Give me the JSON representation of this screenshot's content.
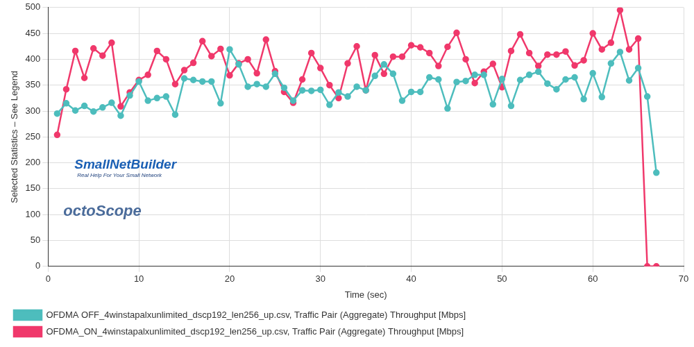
{
  "chart_data": {
    "type": "line",
    "x_label": "Time (sec)",
    "y_label": "Selected Statistics – See Legend",
    "annotations": [
      "SmallNetBuilder",
      "Real Help For Your Small Network",
      "octoScope"
    ],
    "x": [
      1,
      2,
      3,
      4,
      5,
      6,
      7,
      8,
      9,
      10,
      11,
      12,
      13,
      14,
      15,
      16,
      17,
      18,
      19,
      20,
      21,
      22,
      23,
      24,
      25,
      26,
      27,
      28,
      29,
      30,
      31,
      32,
      33,
      34,
      35,
      36,
      37,
      38,
      39,
      40,
      41,
      42,
      43,
      44,
      45,
      46,
      47,
      48,
      49,
      50,
      51,
      52,
      53,
      54,
      55,
      56,
      57,
      58,
      59,
      60,
      61,
      62,
      63,
      64,
      65,
      66,
      67
    ],
    "series": [
      {
        "name": "OFDMA OFF_4winstapalxunlimited_dscp192_len256_up.csv, Traffic Pair (Aggregate) Throughput [Mbps]",
        "color": "#4dbdbd",
        "marker": "circle",
        "values": [
          295,
          315,
          301,
          310,
          299,
          307,
          316,
          291,
          330,
          357,
          320,
          325,
          328,
          293,
          363,
          360,
          357,
          357,
          315,
          419,
          390,
          347,
          352,
          347,
          372,
          345,
          320,
          340,
          339,
          341,
          312,
          336,
          328,
          347,
          340,
          368,
          390,
          372,
          320,
          337,
          337,
          365,
          361,
          305,
          356,
          358,
          370,
          370,
          313,
          362,
          310,
          360,
          370,
          376,
          353,
          342,
          361,
          365,
          323,
          373,
          327,
          392,
          414,
          359,
          383,
          328,
          181
        ]
      },
      {
        "name": "OFDMA_ON_4winstapalxunlimited_dscp192_len256_up.csv, Traffic Pair (Aggregate) Throughput [Mbps]",
        "color": "#f0386b",
        "marker": "circle",
        "values": [
          254,
          342,
          416,
          364,
          421,
          407,
          432,
          309,
          336,
          360,
          370,
          416,
          400,
          352,
          379,
          393,
          435,
          406,
          420,
          369,
          392,
          400,
          373,
          438,
          377,
          337,
          316,
          361,
          412,
          383,
          350,
          325,
          392,
          425,
          340,
          408,
          372,
          405,
          405,
          427,
          423,
          412,
          387,
          424,
          451,
          400,
          354,
          376,
          391,
          346,
          416,
          448,
          412,
          387,
          409,
          409,
          415,
          388,
          398,
          450,
          419,
          432,
          495,
          419,
          440,
          0,
          0
        ]
      }
    ],
    "xlim": [
      0,
      70
    ],
    "xticks": [
      0,
      10,
      20,
      30,
      40,
      50,
      60,
      70
    ],
    "ylim": [
      0,
      500
    ],
    "yticks": [
      0,
      50,
      100,
      150,
      200,
      250,
      300,
      350,
      400,
      450,
      500
    ],
    "grid": true,
    "legend": "bottom"
  }
}
